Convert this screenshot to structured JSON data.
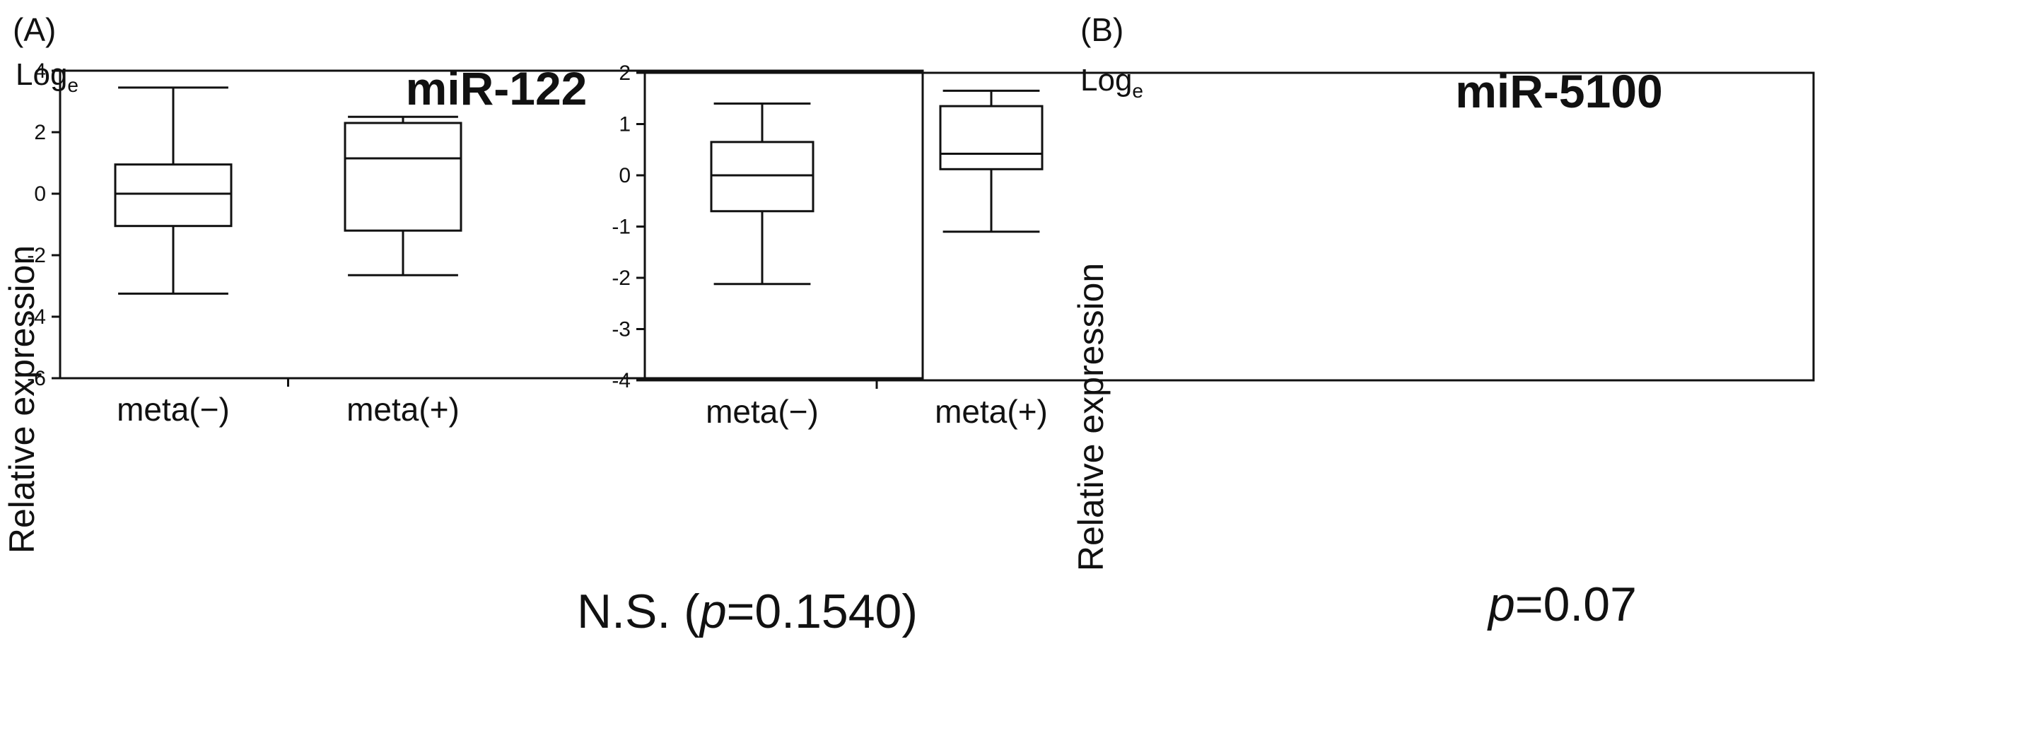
{
  "chart_data": [
    {
      "type": "boxplot",
      "panel_label": "(A)",
      "unit_label": "Log",
      "unit_subscript": "e",
      "title": "miR-122",
      "ylabel": "Relative expression",
      "ylim": [
        -6,
        4
      ],
      "yticks": [
        4,
        2,
        0,
        -2,
        -4,
        -6
      ],
      "categories": [
        "meta(−)",
        "meta(+)"
      ],
      "boxes": [
        {
          "category": "meta(−)",
          "min": -3.25,
          "q1": -1.05,
          "median": 0.0,
          "q3": 0.95,
          "max": 3.45
        },
        {
          "category": "meta(+)",
          "min": -2.65,
          "q1": -1.2,
          "median": 1.15,
          "q3": 2.3,
          "max": 2.5
        }
      ],
      "annotation": {
        "prefix": "N.S. (",
        "p_symbol": "p",
        "value": "=0.1540)"
      },
      "grid": false
    },
    {
      "type": "boxplot",
      "panel_label": "(B)",
      "unit_label": "Log",
      "unit_subscript": "e",
      "title": "miR-5100",
      "ylabel": "Relative expression",
      "ylim": [
        -4,
        2
      ],
      "yticks": [
        2,
        1,
        0,
        -1,
        -2,
        -3,
        -4
      ],
      "categories": [
        "meta(−)",
        "meta(+)"
      ],
      "boxes": [
        {
          "category": "meta(−)",
          "min": -2.12,
          "q1": -0.7,
          "median": 0.0,
          "q3": 0.65,
          "max": 1.4
        },
        {
          "category": "meta(+)",
          "min": -1.1,
          "q1": 0.12,
          "median": 0.42,
          "q3": 1.35,
          "max": 1.65
        }
      ],
      "annotation": {
        "prefix": "",
        "p_symbol": "p",
        "value": "=0.07"
      },
      "grid": false
    }
  ]
}
